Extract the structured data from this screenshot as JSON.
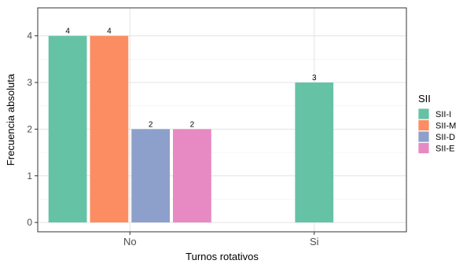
{
  "chart_data": {
    "type": "bar",
    "title": "",
    "xlabel": "Turnos rotativos",
    "ylabel": "Frecuencia absoluta",
    "categories": [
      "No",
      "Si"
    ],
    "ylim": [
      -0.2,
      4.6
    ],
    "yticks": [
      0,
      1,
      2,
      3,
      4
    ],
    "grid": true,
    "legend_position": "right",
    "legend_title": "SII",
    "series": [
      {
        "name": "SII-I",
        "color": "#66c2a5",
        "values": [
          4,
          3
        ]
      },
      {
        "name": "SII-M",
        "color": "#fc8d62",
        "values": [
          4,
          null
        ]
      },
      {
        "name": "SII-D",
        "color": "#8da0cb",
        "values": [
          2,
          null
        ]
      },
      {
        "name": "SII-E",
        "color": "#e78ac3",
        "values": [
          2,
          null
        ]
      }
    ]
  }
}
